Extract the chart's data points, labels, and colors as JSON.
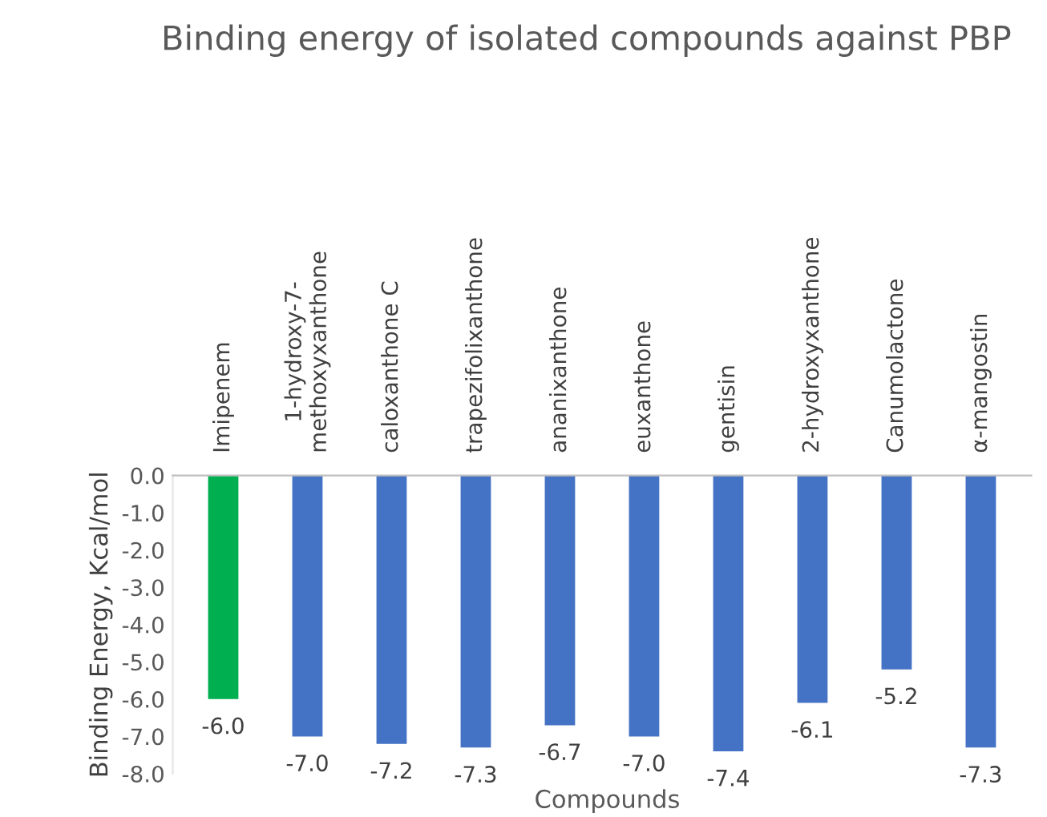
{
  "chart_data": {
    "type": "bar",
    "title": "Binding energy of isolated compounds against PBP",
    "xlabel": "Compounds",
    "ylabel": "Binding Energy, Kcal/mol",
    "categories": [
      "Imipenem",
      "1-hydroxy-7-\nmethoxyxanthone",
      "caloxanthone C",
      "trapezifolixanthone",
      "ananixanthone",
      "euxanthone",
      "gentisin",
      "2-hydroxyxanthone",
      "Canumolactone",
      "α-mangostin"
    ],
    "values": [
      -6.0,
      -7.0,
      -7.2,
      -7.3,
      -6.7,
      -7.0,
      -7.4,
      -6.1,
      -5.2,
      -7.3
    ],
    "colors": [
      "#00b050",
      "#4472c4",
      "#4472c4",
      "#4472c4",
      "#4472c4",
      "#4472c4",
      "#4472c4",
      "#4472c4",
      "#4472c4",
      "#4472c4"
    ],
    "value_labels": [
      "-6.0",
      "-7.0",
      "-7.2",
      "-7.3",
      "-6.7",
      "-7.0",
      "-7.4",
      "-6.1",
      "-5.2",
      "-7.3"
    ],
    "ylim": [
      -8,
      0
    ],
    "yticks": [
      {
        "value": 0,
        "label": "0.0"
      },
      {
        "value": -1,
        "label": "-1.0"
      },
      {
        "value": -2,
        "label": "-2.0"
      },
      {
        "value": -3,
        "label": "-3.0"
      },
      {
        "value": -4,
        "label": "-4.0"
      },
      {
        "value": -5,
        "label": "-5.0"
      },
      {
        "value": -6,
        "label": "-6.0"
      },
      {
        "value": -7,
        "label": "-7.0"
      },
      {
        "value": -8,
        "label": "-8.0"
      }
    ],
    "grid": false,
    "legend": false
  }
}
